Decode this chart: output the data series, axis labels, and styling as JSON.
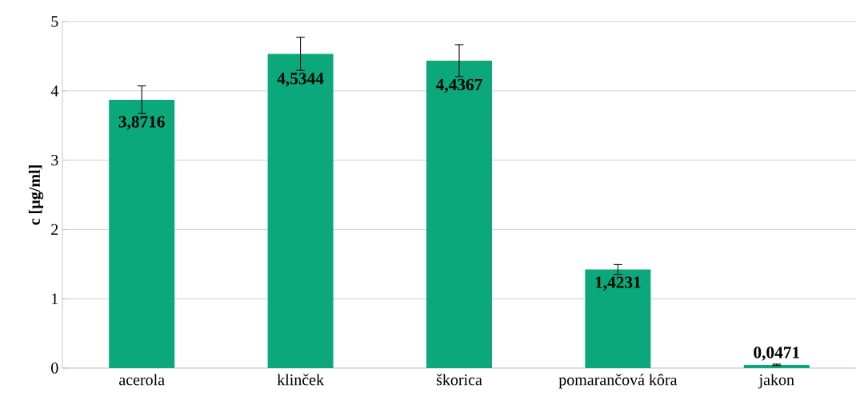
{
  "chart_data": {
    "type": "bar",
    "ylabel": "c [µg/ml]",
    "categories": [
      "acerola",
      "klinček",
      "škorica",
      "pomarančová kôra",
      "jakon"
    ],
    "values": [
      3.8716,
      4.5344,
      4.4367,
      1.4231,
      0.0471
    ],
    "value_labels": [
      "3,8716",
      "4,5344",
      "4,4367",
      "1,4231",
      "0,0471"
    ],
    "errors": [
      0.2,
      0.24,
      0.23,
      0.07,
      0.01
    ],
    "color": "#0aa87a",
    "ylim": [
      0,
      5
    ],
    "yticks": [
      0,
      1,
      2,
      3,
      4,
      5
    ],
    "grid": "y"
  }
}
